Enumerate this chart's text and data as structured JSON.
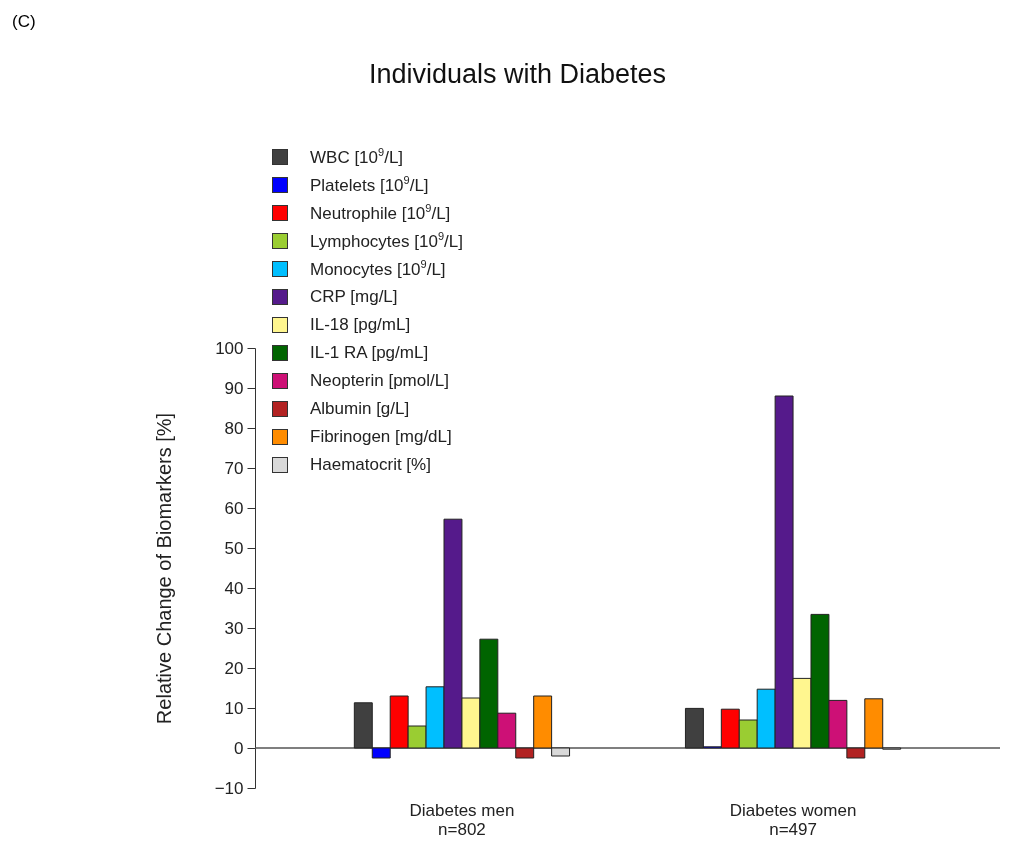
{
  "chart_data": {
    "type": "bar",
    "title": "Individuals with Diabetes",
    "ylabel": "Relative Change of Biomarkers [%]",
    "annotations": [
      "(C)"
    ],
    "categories": [
      "Diabetes men\nn=802",
      "Diabetes women\nn=497"
    ],
    "series": [
      {
        "name": "WBC [10$^{9}$/L]",
        "color": "#404040",
        "values": [
          11.3,
          9.9
        ]
      },
      {
        "name": "Platelets [10$^{9}$/L]",
        "color": "#0000ff",
        "values": [
          -2.5,
          0.3
        ]
      },
      {
        "name": "Neutrophile [10$^{9}$/L]",
        "color": "#ff0000",
        "values": [
          13,
          9.7
        ]
      },
      {
        "name": "Lymphocytes [10$^{9}$/L]",
        "color": "#9acd32",
        "values": [
          5.5,
          7
        ]
      },
      {
        "name": "Monocytes [10$^{9}$/L]",
        "color": "#00bfff",
        "values": [
          15.3,
          14.7
        ]
      },
      {
        "name": "CRP [mg/L]",
        "color": "#551a8b",
        "values": [
          57.2,
          88
        ]
      },
      {
        "name": "IL-18 [pg/mL]",
        "color": "#fff68f",
        "values": [
          12.5,
          17.4
        ]
      },
      {
        "name": "IL-1 RA [pg/mL]",
        "color": "#006400",
        "values": [
          27.2,
          33.4
        ]
      },
      {
        "name": "Neopterin [pmol/L]",
        "color": "#cd1076",
        "values": [
          8.7,
          11.9
        ]
      },
      {
        "name": "Albumin [g/L]",
        "color": "#b22222",
        "values": [
          -2.5,
          -2.5
        ]
      },
      {
        "name": "Fibrinogen [mg/dL]",
        "color": "#ff8c00",
        "values": [
          13,
          12.3
        ]
      },
      {
        "name": "Haematocrit [%]",
        "color": "#d9d9d9",
        "values": [
          -2,
          -0.3
        ]
      }
    ],
    "ylim": [
      -10,
      100
    ],
    "yticks": [
      -10,
      0,
      10,
      20,
      30,
      40,
      50,
      60,
      70,
      80,
      90,
      100
    ],
    "ref_lines": [
      {
        "axis": "y",
        "value": 0
      }
    ],
    "legend": "top left",
    "grid": false
  }
}
